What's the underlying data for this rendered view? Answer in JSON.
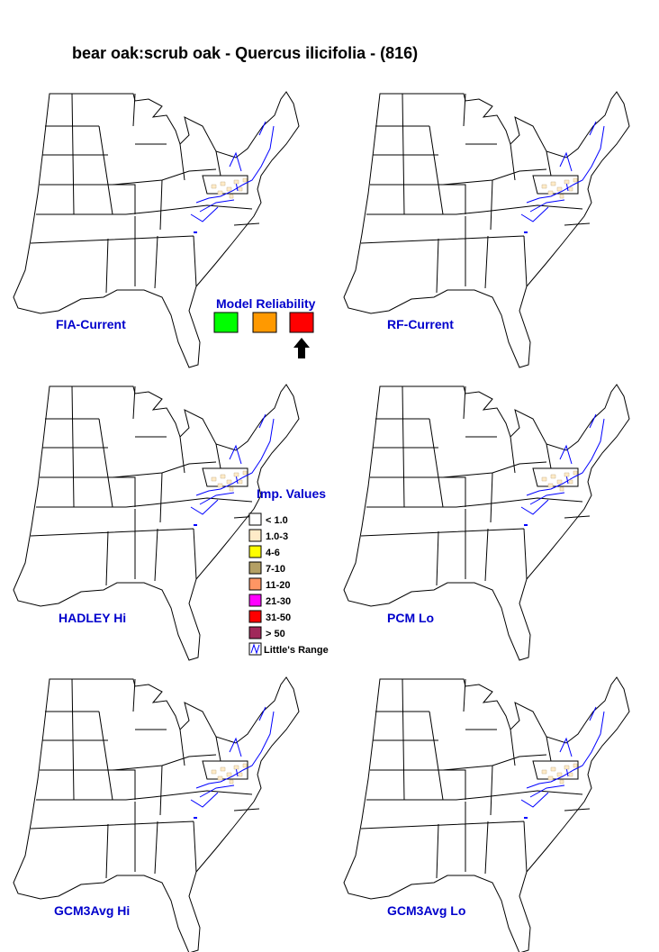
{
  "title": "bear oak:scrub oak - Quercus ilicifolia - (816)",
  "maps": [
    {
      "label": "FIA-Current"
    },
    {
      "label": "RF-Current"
    },
    {
      "label": "HADLEY Hi"
    },
    {
      "label": "PCM Lo"
    },
    {
      "label": "GCM3Avg Hi"
    },
    {
      "label": "GCM3Avg Lo"
    }
  ],
  "model_reliability": {
    "title": "Model Reliability",
    "colors": [
      "#00ff00",
      "#ff9900",
      "#ff0000"
    ],
    "selected": 2
  },
  "imp_values": {
    "title": "Imp. Values",
    "items": [
      {
        "label": "< 1.0",
        "color": "#ffffff"
      },
      {
        "label": "1.0-3",
        "color": "#ffebc8"
      },
      {
        "label": "4-6",
        "color": "#ffff00"
      },
      {
        "label": "7-10",
        "color": "#b4a064"
      },
      {
        "label": "11-20",
        "color": "#ff9664"
      },
      {
        "label": "21-30",
        "color": "#ff00ff"
      },
      {
        "label": "31-50",
        "color": "#ff0000"
      },
      {
        "label": "> 50",
        "color": "#a0285a"
      }
    ],
    "range_label": "Little's Range"
  }
}
